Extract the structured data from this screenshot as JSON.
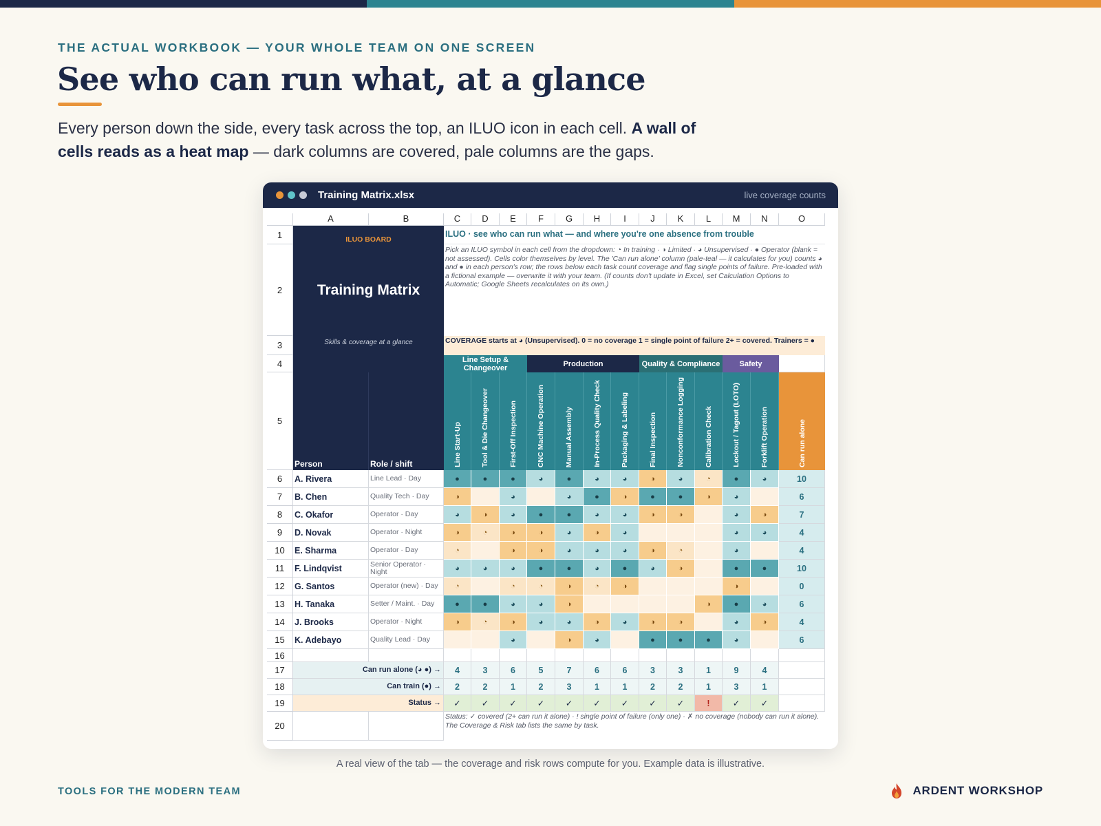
{
  "brand_colors": {
    "navy": "#1c2847",
    "teal": "#2c8490",
    "orange": "#e8943a"
  },
  "header": {
    "eyebrow": "THE ACTUAL WORKBOOK — YOUR WHOLE TEAM ON ONE SCREEN",
    "title": "See who can run what, at a glance",
    "lede_part1": "Every person down the side, every task across the top, an ILUO icon in each cell. ",
    "lede_bold": "A wall of cells reads as a heat map",
    "lede_part2": " — dark columns are covered, pale columns are the gaps."
  },
  "window": {
    "title": "Training Matrix.xlsx",
    "right_label": "live coverage counts",
    "dot_colors": [
      "#e8943a",
      "#5fc3c9",
      "#c8cbd6"
    ]
  },
  "sheet": {
    "columns": [
      "A",
      "B",
      "C",
      "D",
      "E",
      "F",
      "G",
      "H",
      "I",
      "J",
      "K",
      "L",
      "M",
      "N",
      "O"
    ],
    "row_numbers": [
      "1",
      "2",
      "3",
      "4",
      "5",
      "6",
      "7",
      "8",
      "9",
      "10",
      "11",
      "12",
      "13",
      "14",
      "15",
      "16",
      "17",
      "18",
      "19",
      "20"
    ],
    "board_label": "ILUO BOARD",
    "board_title": "Training Matrix",
    "board_subtitle": "Skills & coverage at a glance",
    "row1_title": "ILUO  ·  see who can run what — and where you're one absence from trouble",
    "instructions": "Pick an ILUO symbol in each cell from the dropdown: ◔ In training · ◑ Limited · ◕ Unsupervised · ● Operator (blank = not assessed). Cells color themselves by level. The 'Can run alone' column (pale-teal — it calculates for you) counts ◕ and ● in each person's row; the rows below each task count coverage and flag single points of failure. Pre-loaded with a fictional example — overwrite it with your team. (If counts don't update in Excel, set Calculation Options to Automatic; Google Sheets recalculates on its own.)",
    "coverage_note": "COVERAGE starts at ◕ (Unsupervised).   0 = no coverage   1 = single point of failure   2+ = covered.  Trainers = ●",
    "groups": [
      {
        "label": "Line Setup & Changeover",
        "color": "#2c8490"
      },
      {
        "label": "Production",
        "color": "#1c2847"
      },
      {
        "label": "Quality & Compliance",
        "color": "#2b6f74"
      },
      {
        "label": "Safety",
        "color": "#6a5b9e"
      }
    ],
    "person_header": "Person",
    "role_header": "Role / shift",
    "tasks": [
      "Line Start-Up",
      "Tool & Die Changeover",
      "First-Off Inspection",
      "CNC Machine Operation",
      "Manual Assembly",
      "In-Process Quality Check",
      "Packaging & Labeling",
      "Final Inspection",
      "Nonconformance Logging",
      "Calibration Check",
      "Lockout / Tagout (LOTO)",
      "Forklift Operation"
    ],
    "total_header": "Can run alone",
    "people": [
      {
        "name": "A. Rivera",
        "role": "Line Lead · Day",
        "levels": [
          "●",
          "●",
          "●",
          "◕",
          "●",
          "◕",
          "◕",
          "◑",
          "◕",
          "◔",
          "●",
          "◕"
        ],
        "alone": "10"
      },
      {
        "name": "B. Chen",
        "role": "Quality Tech · Day",
        "levels": [
          "◑",
          "",
          "◕",
          "",
          "◕",
          "●",
          "◑",
          "●",
          "●",
          "◑",
          "◕",
          ""
        ],
        "alone": "6"
      },
      {
        "name": "C. Okafor",
        "role": "Operator · Day",
        "levels": [
          "◕",
          "◑",
          "◕",
          "●",
          "●",
          "◕",
          "◕",
          "◑",
          "◑",
          "",
          "◕",
          "◑"
        ],
        "alone": "7"
      },
      {
        "name": "D. Novak",
        "role": "Operator · Night",
        "levels": [
          "◑",
          "◔",
          "◑",
          "◑",
          "◕",
          "◑",
          "◕",
          "",
          "",
          "",
          "◕",
          "◕"
        ],
        "alone": "4"
      },
      {
        "name": "E. Sharma",
        "role": "Operator · Day",
        "levels": [
          "◔",
          "",
          "◑",
          "◑",
          "◕",
          "◕",
          "◕",
          "◑",
          "◔",
          "",
          "◕",
          ""
        ],
        "alone": "4"
      },
      {
        "name": "F. Lindqvist",
        "role": "Senior Operator · Night",
        "levels": [
          "◕",
          "◕",
          "◕",
          "●",
          "●",
          "◕",
          "●",
          "◕",
          "◑",
          "",
          "●",
          "●"
        ],
        "alone": "10"
      },
      {
        "name": "G. Santos",
        "role": "Operator (new) · Day",
        "levels": [
          "◔",
          "",
          "◔",
          "◔",
          "◑",
          "◔",
          "◑",
          "",
          "",
          "",
          "◑",
          ""
        ],
        "alone": "0"
      },
      {
        "name": "H. Tanaka",
        "role": "Setter / Maint. · Day",
        "levels": [
          "●",
          "●",
          "◕",
          "◕",
          "◑",
          "",
          "",
          "",
          "",
          "◑",
          "●",
          "◕"
        ],
        "alone": "6"
      },
      {
        "name": "J. Brooks",
        "role": "Operator · Night",
        "levels": [
          "◑",
          "◔",
          "◑",
          "◕",
          "◕",
          "◑",
          "◕",
          "◑",
          "◑",
          "",
          "◕",
          "◑"
        ],
        "alone": "4"
      },
      {
        "name": "K. Adebayo",
        "role": "Quality Lead · Day",
        "levels": [
          "",
          "",
          "◕",
          "",
          "◑",
          "◕",
          "",
          "●",
          "●",
          "●",
          "◕",
          ""
        ],
        "alone": "6"
      }
    ],
    "summary": [
      {
        "label": "Can run alone (◕ ●) →",
        "values": [
          "4",
          "3",
          "6",
          "5",
          "7",
          "6",
          "6",
          "3",
          "3",
          "1",
          "9",
          "4"
        ]
      },
      {
        "label": "Can train (●) →",
        "values": [
          "2",
          "2",
          "1",
          "2",
          "3",
          "1",
          "1",
          "2",
          "2",
          "1",
          "3",
          "1"
        ]
      },
      {
        "label": "Status →",
        "values": [
          "✓",
          "✓",
          "✓",
          "✓",
          "✓",
          "✓",
          "✓",
          "✓",
          "✓",
          "!",
          "✓",
          "✓"
        ]
      }
    ],
    "status_note": "Status:  ✓ covered (2+ can run it alone)   ·   ! single point of failure (only one)   ·   ✗ no coverage (nobody can run it alone).  The Coverage & Risk tab lists the same by task."
  },
  "caption": "A real view of the tab — the coverage and risk rows compute for you. Example data is illustrative.",
  "footer": {
    "left": "TOOLS FOR THE MODERN TEAM",
    "brand": "ARDENT WORKSHOP"
  }
}
